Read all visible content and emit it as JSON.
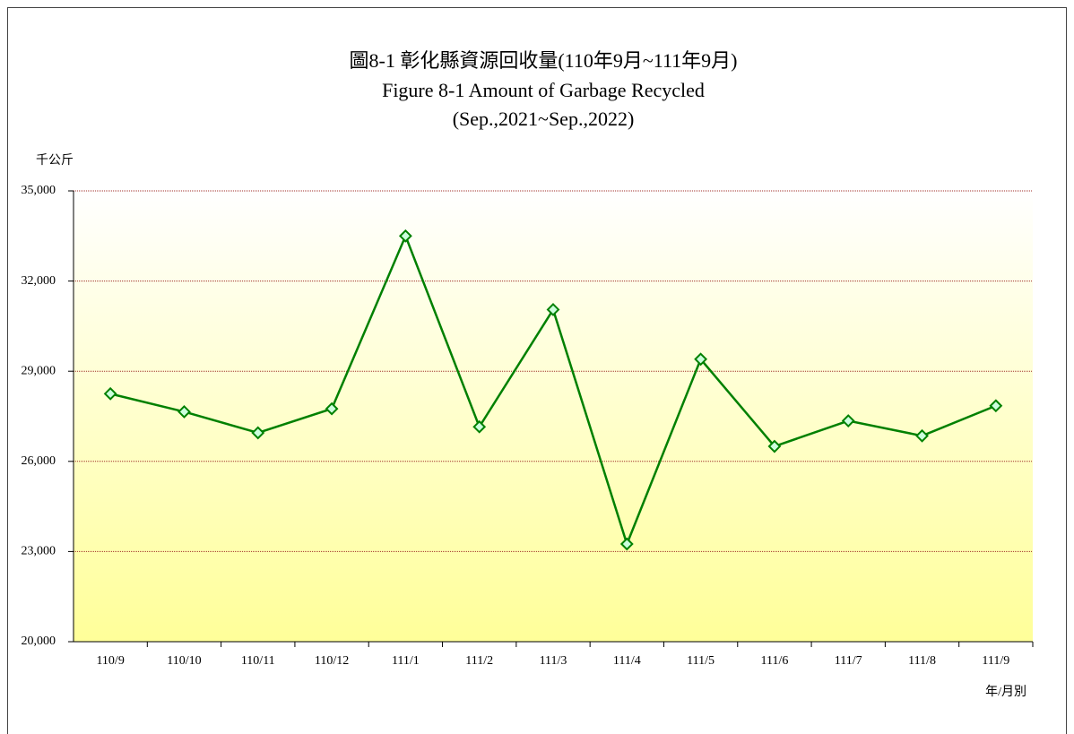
{
  "chart_data": {
    "type": "line",
    "title": "圖8-1 彰化縣資源回收量(110年9月~111年9月)",
    "subtitle": [
      "Figure 8-1 Amount of Garbage Recycled",
      "(Sep.,2021~Sep.,2022)"
    ],
    "y_label": "千公斤",
    "x_label": "年/月別",
    "categories": [
      "110/9",
      "110/10",
      "110/11",
      "110/12",
      "111/1",
      "111/2",
      "111/3",
      "111/4",
      "111/5",
      "111/6",
      "111/7",
      "111/8",
      "111/9"
    ],
    "series": [
      {
        "color": "#008000",
        "values": [
          28250,
          27650,
          26950,
          27750,
          33500,
          27150,
          31050,
          23250,
          29400,
          26500,
          27350,
          26850,
          27850
        ]
      }
    ],
    "ylim": [
      20000,
      35000
    ],
    "yticks": [
      {
        "value": 20000,
        "label": "20,000"
      },
      {
        "value": 23000,
        "label": "23,000"
      },
      {
        "value": 26000,
        "label": "26,000"
      },
      {
        "value": 29000,
        "label": "29,000"
      },
      {
        "value": 32000,
        "label": "32,000"
      },
      {
        "value": 35000,
        "label": "35,000"
      }
    ],
    "grid": true
  }
}
